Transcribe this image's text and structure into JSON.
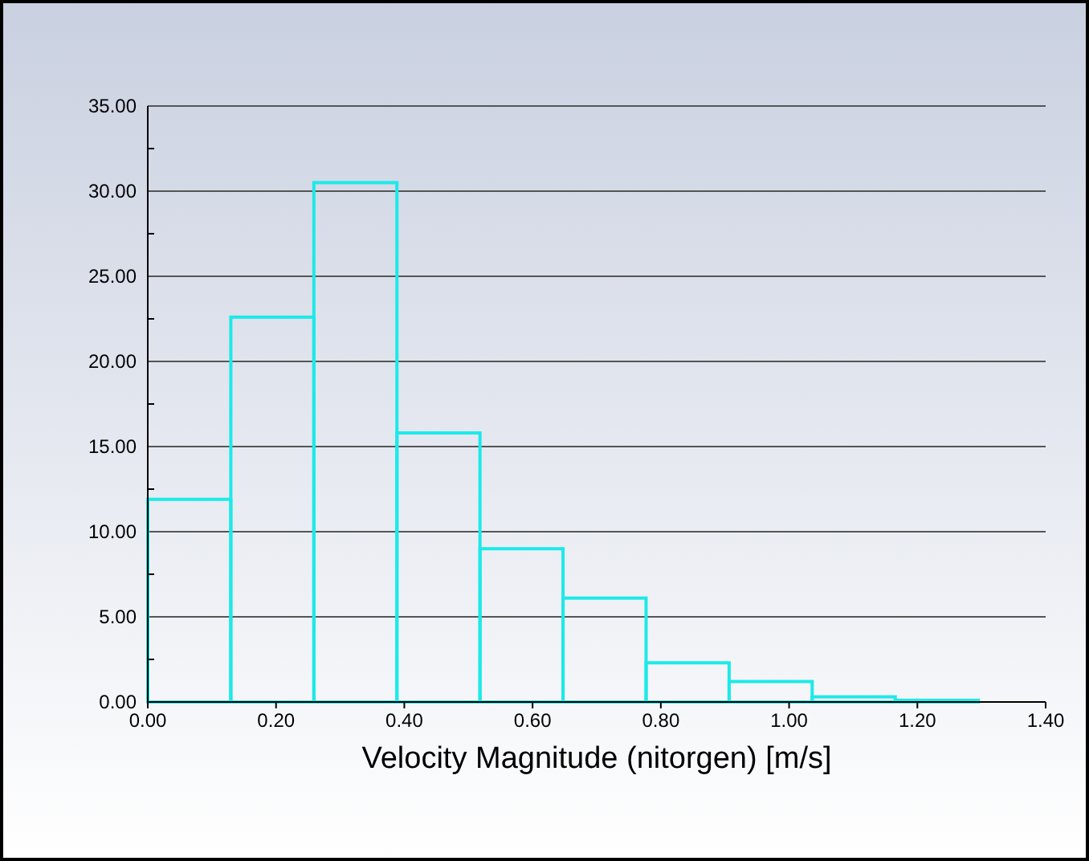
{
  "chart_data": {
    "type": "histogram",
    "xlabel": "Velocity Magnitude (nitorgen)  [m/s]",
    "bins": [
      0,
      0.1295,
      0.259,
      0.3885,
      0.518,
      0.6475,
      0.777,
      0.9065,
      1.036,
      1.1655,
      1.295
    ],
    "values": [
      11.9,
      22.6,
      30.5,
      15.8,
      9.0,
      6.1,
      2.3,
      1.2,
      0.3,
      0.1
    ],
    "color": "#1de9e9",
    "xlim": [
      0,
      1.4
    ],
    "xticks": [
      {
        "value": 0,
        "label": "0.00"
      },
      {
        "value": 0.2,
        "label": "0.20"
      },
      {
        "value": 0.4,
        "label": "0.40"
      },
      {
        "value": 0.6,
        "label": "0.60"
      },
      {
        "value": 0.8,
        "label": "0.80"
      },
      {
        "value": 1.0,
        "label": "1.00"
      },
      {
        "value": 1.2,
        "label": "1.20"
      },
      {
        "value": 1.4,
        "label": "1.40"
      }
    ],
    "ylim": [
      0,
      35
    ],
    "yticks": [
      {
        "value": 0,
        "label": "0.00"
      },
      {
        "value": 2.5,
        "label": null
      },
      {
        "value": 5,
        "label": "5.00"
      },
      {
        "value": 7.5,
        "label": null
      },
      {
        "value": 10,
        "label": "10.00"
      },
      {
        "value": 12.5,
        "label": null
      },
      {
        "value": 15,
        "label": "15.00"
      },
      {
        "value": 17.5,
        "label": null
      },
      {
        "value": 20,
        "label": "20.00"
      },
      {
        "value": 22.5,
        "label": null
      },
      {
        "value": 25,
        "label": "25.00"
      },
      {
        "value": 27.5,
        "label": null
      },
      {
        "value": 30,
        "label": "30.00"
      },
      {
        "value": 32.5,
        "label": null
      },
      {
        "value": 35,
        "label": "35.00"
      }
    ],
    "grid": "y"
  }
}
